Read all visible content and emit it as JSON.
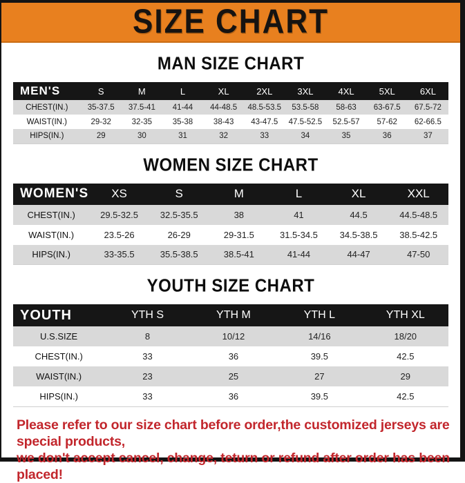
{
  "banner": {
    "title": "SIZE CHART",
    "bg_color": "#E8801F",
    "text_color": "#161311"
  },
  "men": {
    "heading": "MAN SIZE CHART",
    "label": "MEN'S",
    "cols": [
      "S",
      "M",
      "L",
      "XL",
      "2XL",
      "3XL",
      "4XL",
      "5XL",
      "6XL"
    ],
    "rows": [
      {
        "label": "CHEST(IN.)",
        "vals": [
          "35-37.5",
          "37.5-41",
          "41-44",
          "44-48.5",
          "48.5-53.5",
          "53.5-58",
          "58-63",
          "63-67.5",
          "67.5-72"
        ]
      },
      {
        "label": "WAIST(IN.)",
        "vals": [
          "29-32",
          "32-35",
          "35-38",
          "38-43",
          "43-47.5",
          "47.5-52.5",
          "52.5-57",
          "57-62",
          "62-66.5"
        ]
      },
      {
        "label": "HIPS(IN.)",
        "vals": [
          "29",
          "30",
          "31",
          "32",
          "33",
          "34",
          "35",
          "36",
          "37"
        ]
      }
    ]
  },
  "women": {
    "heading": "WOMEN SIZE CHART",
    "label": "WOMEN'S",
    "cols": [
      "XS",
      "S",
      "M",
      "L",
      "XL",
      "XXL"
    ],
    "rows": [
      {
        "label": "CHEST(IN.)",
        "vals": [
          "29.5-32.5",
          "32.5-35.5",
          "38",
          "41",
          "44.5",
          "44.5-48.5"
        ]
      },
      {
        "label": "WAIST(IN.)",
        "vals": [
          "23.5-26",
          "26-29",
          "29-31.5",
          "31.5-34.5",
          "34.5-38.5",
          "38.5-42.5"
        ]
      },
      {
        "label": "HIPS(IN.)",
        "vals": [
          "33-35.5",
          "35.5-38.5",
          "38.5-41",
          "41-44",
          "44-47",
          "47-50"
        ]
      }
    ]
  },
  "youth": {
    "heading": "YOUTH SIZE CHART",
    "label": "YOUTH",
    "cols": [
      "YTH S",
      "YTH M",
      "YTH L",
      "YTH XL"
    ],
    "rows": [
      {
        "label": "U.S.SIZE",
        "vals": [
          "8",
          "10/12",
          "14/16",
          "18/20"
        ]
      },
      {
        "label": "CHEST(IN.)",
        "vals": [
          "33",
          "36",
          "39.5",
          "42.5"
        ]
      },
      {
        "label": "WAIST(IN.)",
        "vals": [
          "23",
          "25",
          "27",
          "29"
        ]
      },
      {
        "label": "HIPS(IN.)",
        "vals": [
          "33",
          "36",
          "39.5",
          "42.5"
        ]
      }
    ]
  },
  "footer": {
    "line1": "Please refer to our size chart before order,the customized jerseys are special products,",
    "line2": "we don't accept cancel, change, teturn or refund after order has been placed!",
    "text_color": "#c2262c"
  }
}
